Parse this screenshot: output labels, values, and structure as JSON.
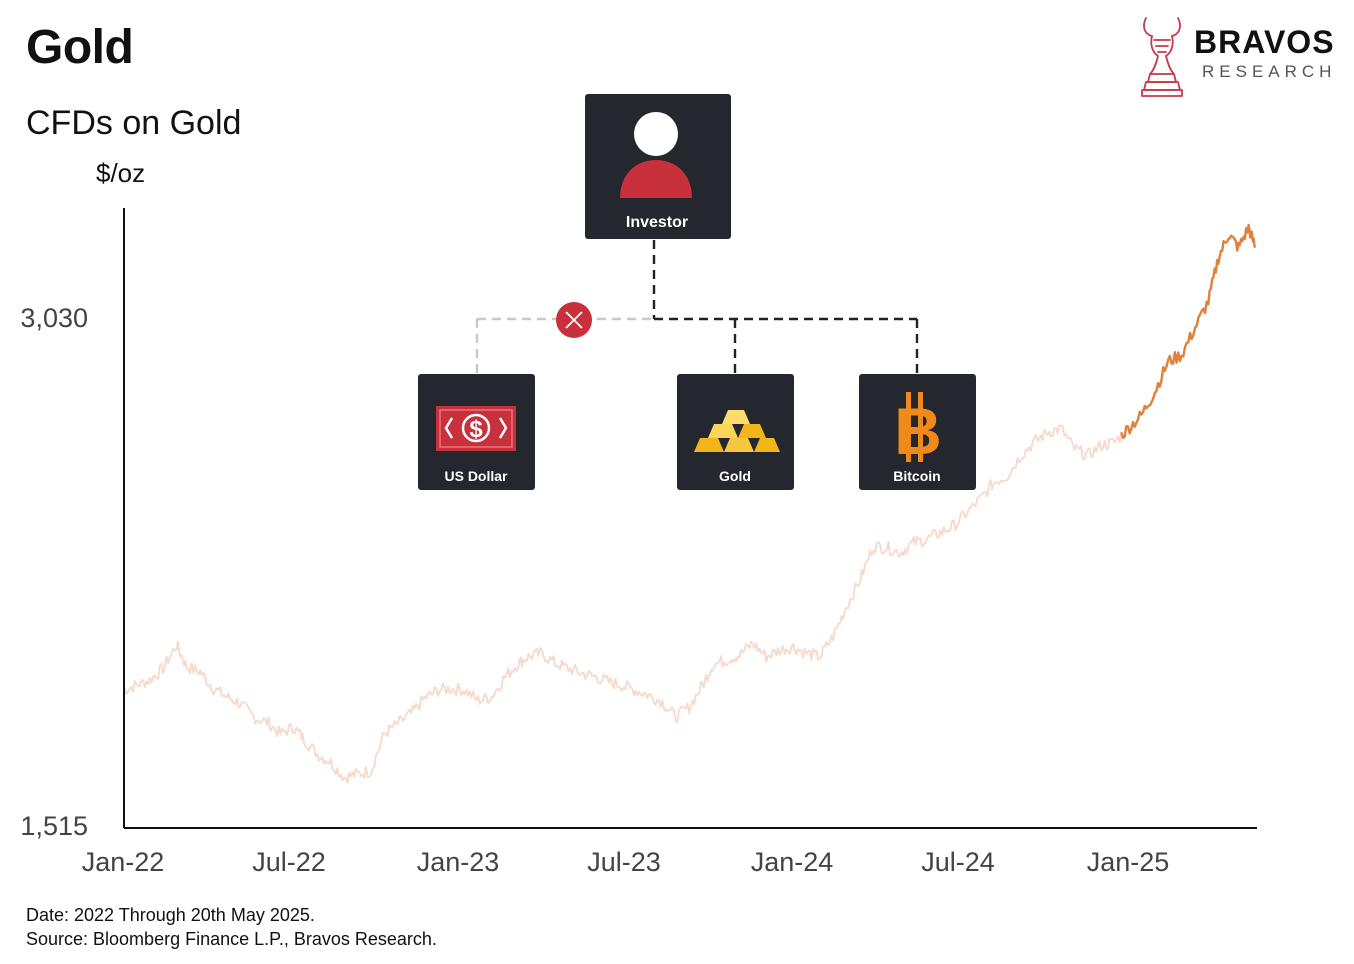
{
  "header": {
    "title": "Gold",
    "subtitle": "CFDs on Gold",
    "unit": "$/oz"
  },
  "brand": {
    "name": "BRAVOS",
    "sub": "RESEARCH"
  },
  "footer": {
    "date": "Date: 2022 Through 20th May 2025.",
    "source": "Source: Bloomberg Finance L.P., Bravos Research."
  },
  "diagram": {
    "investor": "Investor",
    "assets": [
      {
        "label": "US Dollar",
        "icon": "dollar-bill-icon",
        "crossed": true
      },
      {
        "label": "Gold",
        "icon": "gold-bars-icon",
        "crossed": false
      },
      {
        "label": "Bitcoin",
        "icon": "bitcoin-icon",
        "crossed": false
      }
    ],
    "colors": {
      "box": "#24272d",
      "accent": "#c8303c",
      "gold": "#f2b51c",
      "bitcoin": "#f08a1c"
    }
  },
  "chart_data": {
    "type": "line",
    "title": "CFDs on Gold",
    "ylabel": "$/oz",
    "xlabel": "",
    "ylim": [
      1515,
      3330
    ],
    "yticks": [
      {
        "value": 3030,
        "label": "3,030"
      },
      {
        "value": 1515,
        "label": "1,515"
      }
    ],
    "xlim": [
      2022.0,
      2025.38
    ],
    "xticks": [
      {
        "value": 2022.0,
        "label": "Jan-22"
      },
      {
        "value": 2022.5,
        "label": "Jul-22"
      },
      {
        "value": 2023.0,
        "label": "Jan-23"
      },
      {
        "value": 2023.5,
        "label": "Jul-23"
      },
      {
        "value": 2024.0,
        "label": "Jan-24"
      },
      {
        "value": 2024.5,
        "label": "Jul-24"
      },
      {
        "value": 2025.0,
        "label": "Jan-25"
      }
    ],
    "highlight_from": 2024.98,
    "colors": {
      "faded": "#f6d9c8",
      "highlight": "#e0803a"
    },
    "grid": false,
    "series": [
      {
        "x": [
          2022.0,
          2022.04,
          2022.08,
          2022.12,
          2022.16,
          2022.19,
          2022.23,
          2022.27,
          2022.31,
          2022.35,
          2022.39,
          2022.43,
          2022.47,
          2022.51,
          2022.54,
          2022.58,
          2022.62,
          2022.66,
          2022.7,
          2022.74,
          2022.78,
          2022.82,
          2022.86,
          2022.9,
          2022.94,
          2022.98,
          2023.02,
          2023.06,
          2023.1,
          2023.14,
          2023.18,
          2023.21,
          2023.25,
          2023.29,
          2023.33,
          2023.37,
          2023.41,
          2023.45,
          2023.49,
          2023.53,
          2023.57,
          2023.61,
          2023.65,
          2023.69,
          2023.73,
          2023.76,
          2023.8,
          2023.84,
          2023.88,
          2023.92,
          2023.96,
          2024.0,
          2024.04,
          2024.08,
          2024.12,
          2024.16,
          2024.2,
          2024.24,
          2024.28,
          2024.32,
          2024.36,
          2024.4,
          2024.44,
          2024.48,
          2024.52,
          2024.56,
          2024.6,
          2024.64,
          2024.68,
          2024.72,
          2024.76,
          2024.8,
          2024.84,
          2024.88,
          2024.92,
          2024.96,
          2025.0,
          2025.04,
          2025.08,
          2025.12,
          2025.16,
          2025.2,
          2025.24,
          2025.27,
          2025.3,
          2025.33,
          2025.36,
          2025.38
        ],
        "y": [
          1920,
          1935,
          1950,
          1985,
          2055,
          1990,
          1975,
          1925,
          1900,
          1880,
          1840,
          1825,
          1790,
          1810,
          1775,
          1730,
          1705,
          1660,
          1670,
          1680,
          1790,
          1820,
          1850,
          1895,
          1920,
          1925,
          1920,
          1890,
          1900,
          1960,
          2000,
          2020,
          2030,
          2000,
          1985,
          1970,
          1960,
          1945,
          1935,
          1920,
          1905,
          1885,
          1840,
          1870,
          1935,
          1995,
          2010,
          2025,
          2060,
          2020,
          2040,
          2050,
          2030,
          2020,
          2080,
          2170,
          2250,
          2350,
          2345,
          2330,
          2360,
          2370,
          2390,
          2410,
          2450,
          2490,
          2540,
          2560,
          2620,
          2660,
          2690,
          2700,
          2640,
          2620,
          2650,
          2660,
          2700,
          2740,
          2810,
          2900,
          2920,
          3000,
          3080,
          3210,
          3280,
          3240,
          3300,
          3240
        ]
      }
    ]
  }
}
